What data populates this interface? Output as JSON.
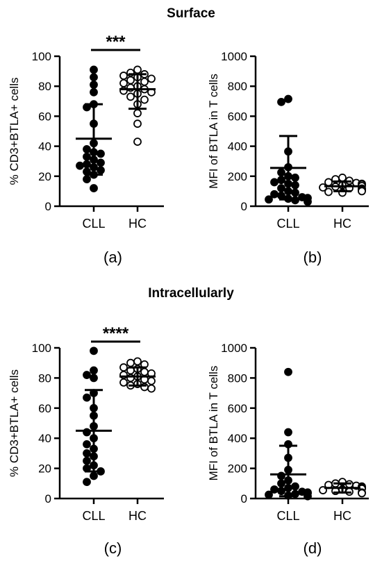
{
  "sections": [
    {
      "title": "Surface"
    },
    {
      "title": "Intracellularly"
    }
  ],
  "chart_data": [
    {
      "type": "scatter",
      "panel_label": "(a)",
      "ylabel": "% CD3+BTLA+ cells",
      "ylim": [
        0,
        100
      ],
      "yticks": [
        0,
        20,
        40,
        60,
        80,
        100
      ],
      "categories": [
        "CLL",
        "HC"
      ],
      "significance": "***",
      "series": [
        {
          "name": "CLL",
          "fill": "#000000",
          "mean": 45,
          "sd_low": 21,
          "sd_high": 68,
          "values": [
            91,
            86,
            81,
            76,
            68,
            66,
            55,
            42,
            38,
            36,
            35,
            33,
            31,
            29,
            28,
            27,
            26,
            24,
            23,
            21,
            18,
            12
          ]
        },
        {
          "name": "HC",
          "fill": "#ffffff",
          "mean": 78,
          "sd_low": 65,
          "sd_high": 88,
          "values": [
            91,
            89,
            88,
            87,
            86,
            85,
            84,
            83,
            82,
            80,
            79,
            78,
            77,
            76,
            75,
            73,
            71,
            68,
            62,
            55,
            43
          ]
        }
      ]
    },
    {
      "type": "scatter",
      "panel_label": "(b)",
      "ylabel": "MFI of BTLA in T cells",
      "ylim": [
        0,
        1000
      ],
      "yticks": [
        0,
        200,
        400,
        600,
        800,
        1000
      ],
      "categories": [
        "CLL",
        "HC"
      ],
      "significance": "",
      "series": [
        {
          "name": "CLL",
          "fill": "#000000",
          "mean": 255,
          "sd_low": 45,
          "sd_high": 468,
          "values": [
            715,
            695,
            365,
            260,
            225,
            200,
            190,
            175,
            160,
            150,
            140,
            120,
            100,
            90,
            80,
            70,
            60,
            55,
            50,
            45,
            40,
            30
          ]
        },
        {
          "name": "HC",
          "fill": "#ffffff",
          "mean": 133,
          "sd_low": 100,
          "sd_high": 165,
          "values": [
            190,
            180,
            170,
            160,
            155,
            150,
            145,
            140,
            135,
            130,
            125,
            120,
            118,
            115,
            110,
            105,
            100,
            95,
            90
          ]
        }
      ]
    },
    {
      "type": "scatter",
      "panel_label": "(c)",
      "ylabel": "% CD3+BTLA+ cells",
      "ylim": [
        0,
        100
      ],
      "yticks": [
        0,
        20,
        40,
        60,
        80,
        100
      ],
      "categories": [
        "CLL",
        "HC"
      ],
      "significance": "****",
      "series": [
        {
          "name": "CLL",
          "fill": "#000000",
          "mean": 45,
          "sd_low": 18,
          "sd_high": 72,
          "values": [
            98,
            85,
            82,
            80,
            70,
            67,
            60,
            55,
            48,
            44,
            40,
            36,
            33,
            30,
            28,
            25,
            22,
            20,
            18,
            15,
            11
          ]
        },
        {
          "name": "HC",
          "fill": "#ffffff",
          "mean": 81,
          "sd_low": 75,
          "sd_high": 87,
          "values": [
            91,
            90,
            89,
            87,
            86,
            85,
            84,
            83,
            82,
            81,
            80,
            79,
            78,
            77,
            76,
            75,
            74,
            73
          ]
        }
      ]
    },
    {
      "type": "scatter",
      "panel_label": "(d)",
      "ylabel": "MFI of BTLA in T cells",
      "ylim": [
        0,
        1000
      ],
      "yticks": [
        0,
        200,
        400,
        600,
        800,
        1000
      ],
      "categories": [
        "CLL",
        "HC"
      ],
      "significance": "",
      "series": [
        {
          "name": "CLL",
          "fill": "#000000",
          "mean": 160,
          "sd_low": 15,
          "sd_high": 350,
          "values": [
            840,
            440,
            360,
            270,
            190,
            150,
            120,
            100,
            80,
            70,
            60,
            50,
            45,
            40,
            35,
            30,
            25,
            20,
            15
          ]
        },
        {
          "name": "HC",
          "fill": "#ffffff",
          "mean": 70,
          "sd_low": 40,
          "sd_high": 100,
          "values": [
            110,
            100,
            95,
            90,
            85,
            80,
            75,
            70,
            65,
            60,
            55,
            50,
            45,
            40,
            35
          ]
        }
      ]
    }
  ]
}
